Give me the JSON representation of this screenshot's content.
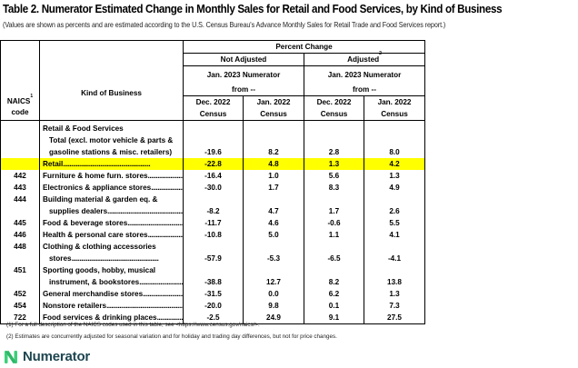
{
  "title": "Table 2.  Numerator Estimated Change in Monthly Sales for Retail and Food Services, by Kind of Business",
  "subtitle": "(Values are shown as percents and are estimated according to the U.S. Census Bureau's Advance Monthly Sales for Retail Trade and Food Services report.)",
  "header": {
    "naics": "NAICS",
    "naics_sup": "1",
    "code": "code",
    "kind": "Kind of Business",
    "percent_change": "Percent Change",
    "not_adjusted": "Not Adjusted",
    "adjusted": "Adjusted",
    "adjusted_sup": "2",
    "numerator_line": "Jan. 2023 Numerator",
    "from_line": "from --",
    "col1": [
      "Dec. 2022",
      "Census"
    ],
    "col2": [
      "Jan. 2022",
      "Census"
    ],
    "col3": [
      "Dec. 2022",
      "Census"
    ],
    "col4": [
      "Jan. 2022",
      "Census"
    ]
  },
  "rows": [
    {
      "code": "",
      "lines": [
        "Retail & Food Services",
        "Total (excl. motor vehicle & parts &",
        "gasoline stations & misc. retailers)"
      ],
      "values": [
        "-19.6",
        "8.2",
        "2.8",
        "8.0"
      ],
      "highlight": false
    },
    {
      "code": "",
      "lines": [
        "Retail"
      ],
      "values": [
        "-22.8",
        "4.8",
        "1.3",
        "4.2"
      ],
      "highlight": true
    },
    {
      "code": "442",
      "lines": [
        "Furniture & home furn. stores"
      ],
      "values": [
        "-16.4",
        "1.0",
        "5.6",
        "1.3"
      ],
      "highlight": false
    },
    {
      "code": "443",
      "lines": [
        "Electronics & appliance stores"
      ],
      "values": [
        "-30.0",
        "1.7",
        "8.3",
        "4.9"
      ],
      "highlight": false
    },
    {
      "code": "444",
      "lines": [
        "Building material & garden eq. &",
        "supplies dealers"
      ],
      "values": [
        "-8.2",
        "4.7",
        "1.7",
        "2.6"
      ],
      "highlight": false
    },
    {
      "code": "445",
      "lines": [
        "Food & beverage stores"
      ],
      "values": [
        "-11.7",
        "4.6",
        "-0.6",
        "5.5"
      ],
      "highlight": false
    },
    {
      "code": "446",
      "lines": [
        "Health & personal care stores"
      ],
      "values": [
        "-10.8",
        "5.0",
        "1.1",
        "4.1"
      ],
      "highlight": false
    },
    {
      "code": "448",
      "lines": [
        "Clothing & clothing accessories",
        "stores"
      ],
      "values": [
        "-57.9",
        "-5.3",
        "-6.5",
        "-4.1"
      ],
      "highlight": false
    },
    {
      "code": "451",
      "lines": [
        "Sporting goods, hobby, musical",
        "instrument, & bookstores"
      ],
      "values": [
        "-38.8",
        "12.7",
        "8.2",
        "13.8"
      ],
      "highlight": false
    },
    {
      "code": "452",
      "lines": [
        "General merchandise stores"
      ],
      "values": [
        "-31.5",
        "0.0",
        "6.2",
        "1.3"
      ],
      "highlight": false
    },
    {
      "code": "454",
      "lines": [
        "Nonstore retailers"
      ],
      "values": [
        "-20.0",
        "9.8",
        "0.1",
        "7.3"
      ],
      "highlight": false
    },
    {
      "code": "722",
      "lines": [
        "Food services & drinking places"
      ],
      "values": [
        "-2.5",
        "24.9",
        "9.1",
        "27.5"
      ],
      "highlight": false
    }
  ],
  "leader_dots": "......................................................",
  "footnotes": [
    "(1)  For a full description of the NAICS codes used in this table, see <https://www.census.gov/naics/>.",
    "(2)  Estimates are concurrently adjusted for seasonal variation and for holiday and trading day differences, but not for price changes."
  ],
  "logo": {
    "text": "Numerator",
    "icon": "numerator-n-icon",
    "colors": {
      "icon": "#3ccf7a",
      "text": "#1d4550"
    }
  },
  "highlight_color": "#ffff00"
}
